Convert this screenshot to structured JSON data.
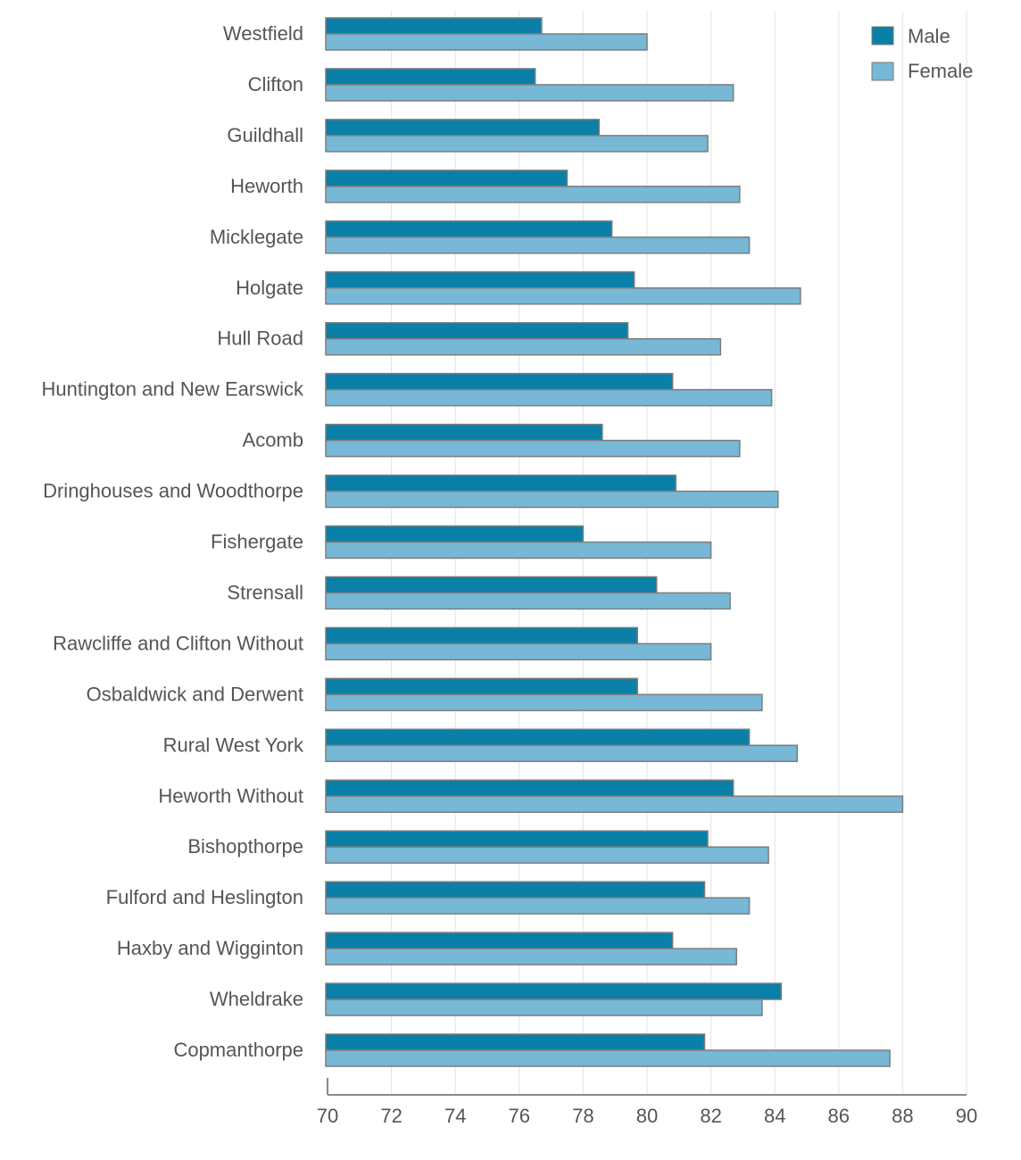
{
  "chart_data": {
    "type": "bar",
    "orientation": "horizontal",
    "title": "",
    "xlabel": "",
    "ylabel": "",
    "xlim": [
      70,
      90
    ],
    "x_ticks": [
      "70",
      "72",
      "74",
      "76",
      "78",
      "80",
      "82",
      "84",
      "86",
      "88",
      "90"
    ],
    "grid": "vertical",
    "legend_position": "top-right",
    "categories": [
      "Westfield",
      "Clifton",
      "Guildhall",
      "Heworth",
      "Micklegate",
      "Holgate",
      "Hull Road",
      "Huntington and New Earswick",
      "Acomb",
      "Dringhouses and Woodthorpe",
      "Fishergate",
      "Strensall",
      "Rawcliffe and Clifton Without",
      "Osbaldwick and Derwent",
      "Rural West York",
      "Heworth Without",
      "Bishopthorpe",
      "Fulford and Heslington",
      "Haxby and Wigginton",
      "Wheldrake",
      "Copmanthorpe"
    ],
    "series": [
      {
        "name": "Male",
        "color": "#0a7fa8",
        "values": [
          76.7,
          76.5,
          78.5,
          77.5,
          78.9,
          79.6,
          79.4,
          80.8,
          78.6,
          80.9,
          78.0,
          80.3,
          79.7,
          79.7,
          83.2,
          82.7,
          81.9,
          81.8,
          80.8,
          84.2,
          81.8
        ]
      },
      {
        "name": "Female",
        "color": "#76b8d6",
        "values": [
          80.0,
          82.7,
          81.9,
          82.9,
          83.2,
          84.8,
          82.3,
          83.9,
          82.9,
          84.1,
          82.0,
          82.6,
          82.0,
          83.6,
          84.7,
          88.0,
          83.8,
          83.2,
          82.8,
          83.6,
          87.6
        ]
      }
    ]
  }
}
